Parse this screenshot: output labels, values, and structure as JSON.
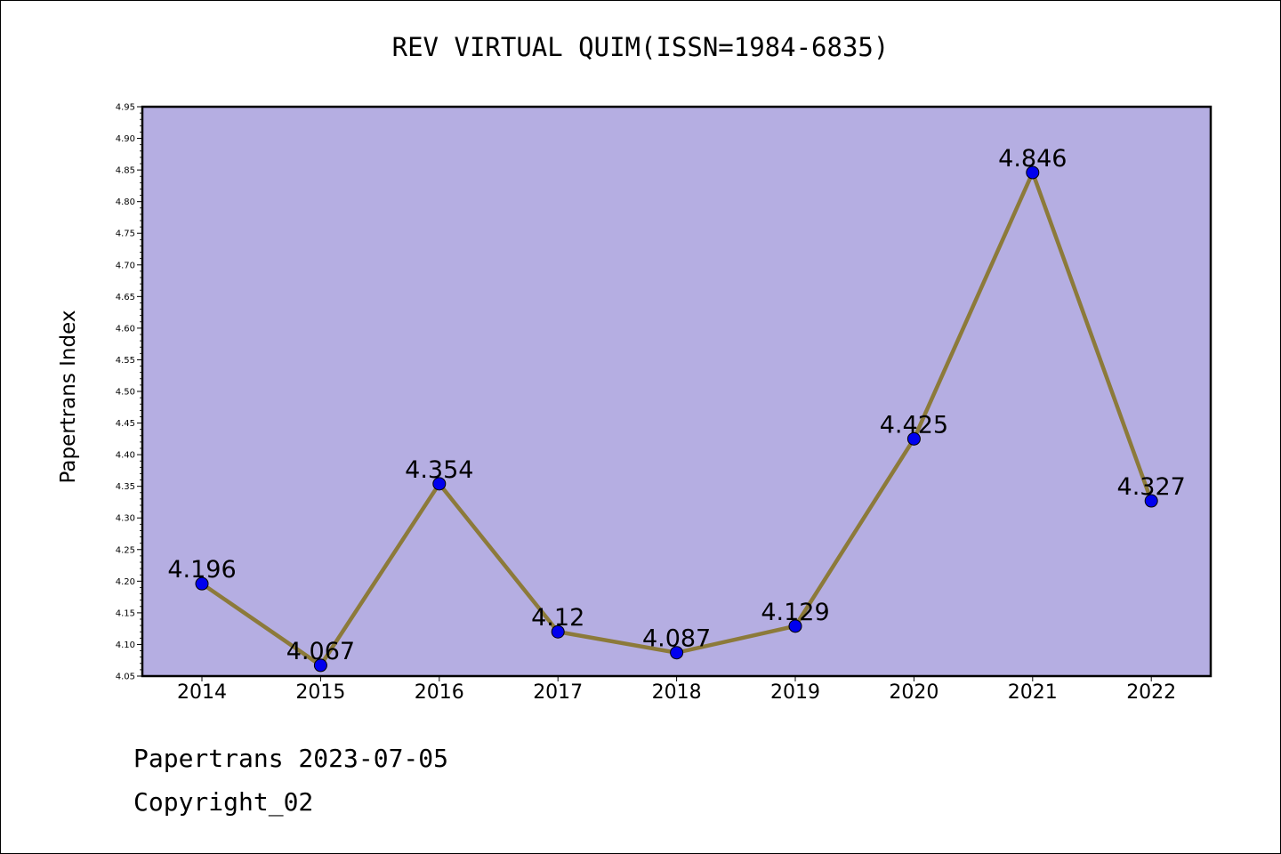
{
  "chart_data": {
    "type": "line",
    "title": "REV VIRTUAL QUIM(ISSN=1984-6835)",
    "ylabel": "Papertrans Index",
    "xlabel": "",
    "categories": [
      "2014",
      "2015",
      "2016",
      "2017",
      "2018",
      "2019",
      "2020",
      "2021",
      "2022"
    ],
    "values": [
      4.196,
      4.067,
      4.354,
      4.12,
      4.087,
      4.129,
      4.425,
      4.846,
      4.327
    ],
    "data_labels": [
      "4.196",
      "4.067",
      "4.354",
      "4.12",
      "4.087",
      "4.129",
      "4.425",
      "4.846",
      "4.327"
    ],
    "ylim": [
      4.05,
      4.95
    ],
    "yticks": [
      "4.05",
      "4.10",
      "4.15",
      "4.20",
      "4.25",
      "4.30",
      "4.35",
      "4.40",
      "4.45",
      "4.50",
      "4.55",
      "4.60",
      "4.65",
      "4.70",
      "4.75",
      "4.80",
      "4.85",
      "4.90",
      "4.95"
    ],
    "grid": false,
    "legend": "none",
    "colors": {
      "plot_background": "#b5aee2",
      "line": "#8c7a3a",
      "marker": "#0000ee"
    }
  },
  "footer": {
    "line1": "Papertrans 2023-07-05",
    "line2": "Copyright_02"
  }
}
